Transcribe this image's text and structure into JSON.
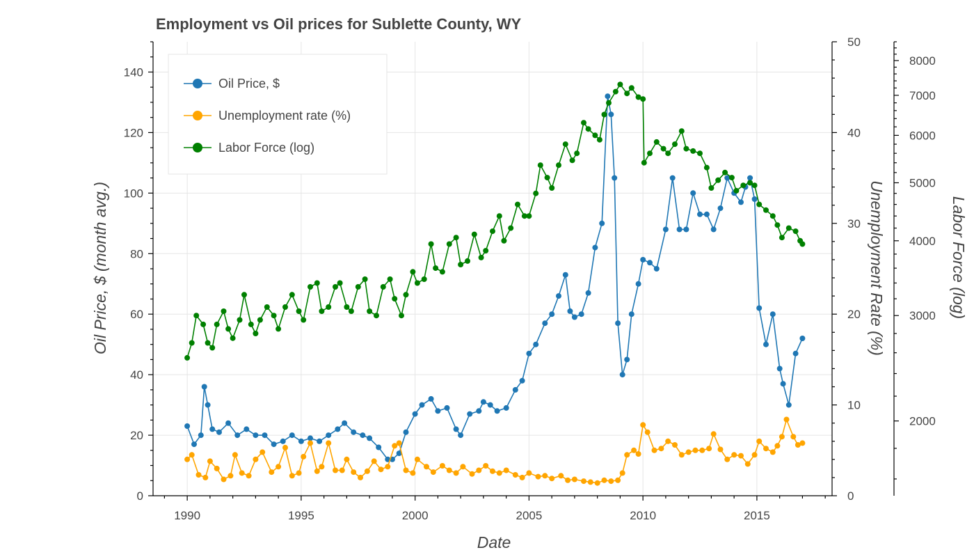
{
  "chart_data": {
    "type": "line",
    "title": "Employment vs Oil prices for Sublette County, WY",
    "xlabel": "Date",
    "xlim": [
      1988.5,
      2018.3
    ],
    "xticks": [
      1990,
      1995,
      2000,
      2005,
      2010,
      2015
    ],
    "axes": {
      "left": {
        "label": "Oil Price, $ (month avg.)",
        "ylim": [
          0,
          150
        ],
        "ticks": [
          0,
          20,
          40,
          60,
          80,
          100,
          120,
          140
        ]
      },
      "right": {
        "label": "Unemployment Rate (%)",
        "ylim": [
          0,
          50
        ],
        "ticks": [
          0,
          10,
          20,
          30,
          40,
          50
        ]
      },
      "right2": {
        "label": "Labor Force (log)",
        "ylim": [
          1500,
          8600
        ],
        "ticks": [
          2000,
          3000,
          4000,
          5000,
          6000,
          7000,
          8000
        ]
      }
    },
    "grid": true,
    "legend": {
      "placement": "top-left"
    },
    "series": [
      {
        "name": "Oil Price, $",
        "axis": "left",
        "color": "#1f77b4",
        "x": [
          1990.0,
          1990.3,
          1990.6,
          1990.75,
          1990.9,
          1991.1,
          1991.4,
          1991.8,
          1992.2,
          1992.6,
          1993.0,
          1993.4,
          1993.8,
          1994.2,
          1994.6,
          1995.0,
          1995.4,
          1995.8,
          1996.2,
          1996.6,
          1996.9,
          1997.3,
          1997.7,
          1998.0,
          1998.4,
          1998.8,
          1999.0,
          1999.3,
          1999.6,
          2000.0,
          2000.3,
          2000.7,
          2001.0,
          2001.4,
          2001.8,
          2002.0,
          2002.4,
          2002.8,
          2003.0,
          2003.3,
          2003.6,
          2004.0,
          2004.4,
          2004.7,
          2005.0,
          2005.3,
          2005.7,
          2006.0,
          2006.3,
          2006.6,
          2006.8,
          2007.0,
          2007.3,
          2007.6,
          2007.9,
          2008.2,
          2008.45,
          2008.6,
          2008.75,
          2008.9,
          2009.1,
          2009.3,
          2009.5,
          2009.8,
          2010.0,
          2010.3,
          2010.6,
          2011.0,
          2011.3,
          2011.6,
          2011.9,
          2012.2,
          2012.5,
          2012.8,
          2013.1,
          2013.4,
          2013.7,
          2014.0,
          2014.3,
          2014.5,
          2014.7,
          2014.9,
          2015.1,
          2015.4,
          2015.7,
          2016.0,
          2016.15,
          2016.4,
          2016.7,
          2017.0
        ],
        "y": [
          23,
          17,
          20,
          36,
          30,
          22,
          21,
          24,
          20,
          22,
          20,
          20,
          17,
          18,
          20,
          18,
          19,
          18,
          20,
          22,
          24,
          21,
          20,
          19,
          16,
          12,
          12,
          14,
          21,
          27,
          30,
          32,
          28,
          29,
          22,
          20,
          27,
          28,
          31,
          30,
          28,
          29,
          35,
          38,
          47,
          50,
          57,
          60,
          66,
          73,
          61,
          59,
          60,
          67,
          82,
          90,
          132,
          126,
          105,
          57,
          40,
          45,
          60,
          70,
          78,
          77,
          75,
          88,
          105,
          88,
          88,
          100,
          93,
          93,
          88,
          95,
          105,
          100,
          97,
          102,
          105,
          98,
          62,
          50,
          60,
          42,
          37,
          30,
          47,
          52
        ]
      },
      {
        "name": "Unemployment rate (%)",
        "axis": "right",
        "color": "#ffa500",
        "x": [
          1990.0,
          1990.2,
          1990.5,
          1990.8,
          1991.0,
          1991.3,
          1991.6,
          1991.9,
          1992.1,
          1992.4,
          1992.7,
          1993.0,
          1993.3,
          1993.7,
          1994.0,
          1994.3,
          1994.6,
          1994.9,
          1995.1,
          1995.4,
          1995.7,
          1995.9,
          1996.2,
          1996.5,
          1996.8,
          1997.0,
          1997.3,
          1997.6,
          1997.9,
          1998.2,
          1998.5,
          1998.8,
          1999.1,
          1999.3,
          1999.6,
          1999.9,
          2000.1,
          2000.5,
          2000.8,
          2001.2,
          2001.5,
          2001.8,
          2002.1,
          2002.5,
          2002.8,
          2003.1,
          2003.4,
          2003.7,
          2004.0,
          2004.4,
          2004.7,
          2005.0,
          2005.4,
          2005.7,
          2006.0,
          2006.4,
          2006.7,
          2007.0,
          2007.4,
          2007.7,
          2008.0,
          2008.3,
          2008.6,
          2008.9,
          2009.1,
          2009.3,
          2009.6,
          2009.8,
          2010.0,
          2010.2,
          2010.5,
          2010.8,
          2011.1,
          2011.4,
          2011.7,
          2012.0,
          2012.3,
          2012.6,
          2012.9,
          2013.1,
          2013.4,
          2013.7,
          2014.0,
          2014.3,
          2014.6,
          2014.9,
          2015.1,
          2015.4,
          2015.7,
          2015.9,
          2016.1,
          2016.3,
          2016.6,
          2016.8,
          2017.0
        ],
        "y": [
          4,
          4.5,
          2.3,
          2,
          3.8,
          3,
          1.8,
          2.2,
          4.5,
          2.5,
          2.2,
          4,
          4.8,
          2.6,
          3.2,
          5.3,
          2.2,
          2.5,
          4.3,
          5.8,
          2.7,
          3.2,
          5.8,
          2.8,
          2.8,
          4,
          2.6,
          2,
          2.7,
          3.8,
          2.9,
          3.2,
          5.5,
          5.8,
          2.8,
          2.5,
          4,
          3.2,
          2.6,
          3.3,
          2.8,
          2.5,
          3.2,
          2.4,
          2.8,
          3.3,
          2.7,
          2.5,
          2.8,
          2.3,
          2,
          2.5,
          2.1,
          2.2,
          1.9,
          2.2,
          1.7,
          1.8,
          1.6,
          1.5,
          1.4,
          1.7,
          1.6,
          1.7,
          2.5,
          4.5,
          5,
          4.6,
          7.8,
          7,
          5,
          5.2,
          6,
          5.6,
          4.5,
          4.8,
          5,
          5,
          5.2,
          6.8,
          5.1,
          4,
          4.5,
          4.4,
          3.5,
          4.5,
          6,
          5.2,
          4.8,
          5.5,
          6.5,
          8.4,
          6.5,
          5.6,
          5.8
        ]
      },
      {
        "name": "Labor Force (log)",
        "axis": "right2",
        "color": "#008000",
        "x": [
          1990.0,
          1990.2,
          1990.4,
          1990.7,
          1990.9,
          1991.1,
          1991.3,
          1991.6,
          1991.8,
          1992.0,
          1992.3,
          1992.5,
          1992.8,
          1993.0,
          1993.2,
          1993.5,
          1993.8,
          1994.0,
          1994.3,
          1994.6,
          1994.9,
          1995.1,
          1995.4,
          1995.7,
          1995.9,
          1996.2,
          1996.5,
          1996.7,
          1997.0,
          1997.2,
          1997.5,
          1997.8,
          1998.0,
          1998.3,
          1998.6,
          1998.9,
          1999.1,
          1999.4,
          1999.6,
          1999.9,
          2000.1,
          2000.4,
          2000.7,
          2000.9,
          2001.2,
          2001.5,
          2001.8,
          2002.0,
          2002.3,
          2002.6,
          2002.9,
          2003.1,
          2003.4,
          2003.7,
          2003.9,
          2004.2,
          2004.5,
          2004.8,
          2005.0,
          2005.3,
          2005.5,
          2005.8,
          2006.0,
          2006.3,
          2006.6,
          2006.9,
          2007.1,
          2007.4,
          2007.6,
          2007.9,
          2008.1,
          2008.3,
          2008.5,
          2008.8,
          2009.0,
          2009.3,
          2009.5,
          2009.8,
          2010.0,
          2010.05,
          2010.3,
          2010.6,
          2010.9,
          2011.1,
          2011.4,
          2011.7,
          2011.9,
          2012.2,
          2012.5,
          2012.8,
          2013.0,
          2013.3,
          2013.6,
          2013.9,
          2014.1,
          2014.4,
          2014.7,
          2014.9,
          2015.1,
          2015.4,
          2015.7,
          2015.9,
          2016.1,
          2016.4,
          2016.7,
          2016.9,
          2017.0
        ],
        "y": [
          2550,
          2700,
          3000,
          2900,
          2700,
          2650,
          2900,
          3050,
          2850,
          2750,
          2950,
          3250,
          2900,
          2800,
          2950,
          3100,
          3000,
          2850,
          3100,
          3250,
          3050,
          2950,
          3350,
          3400,
          3050,
          3100,
          3350,
          3400,
          3100,
          3050,
          3350,
          3450,
          3050,
          3000,
          3350,
          3450,
          3200,
          3000,
          3250,
          3550,
          3400,
          3450,
          3950,
          3600,
          3550,
          3950,
          4050,
          3650,
          3700,
          4100,
          3750,
          3850,
          4150,
          4400,
          4000,
          4200,
          4600,
          4400,
          4400,
          4800,
          5350,
          5100,
          4900,
          5350,
          5800,
          5450,
          5600,
          6300,
          6150,
          6000,
          5900,
          6500,
          6800,
          7100,
          7300,
          7050,
          7200,
          6950,
          6900,
          5400,
          5600,
          5850,
          5700,
          5600,
          5800,
          6100,
          5700,
          5650,
          5600,
          5300,
          4900,
          5050,
          5200,
          5100,
          4850,
          4950,
          5000,
          4950,
          4600,
          4500,
          4400,
          4250,
          4050,
          4200,
          4150,
          4000,
          3950
        ]
      }
    ]
  }
}
